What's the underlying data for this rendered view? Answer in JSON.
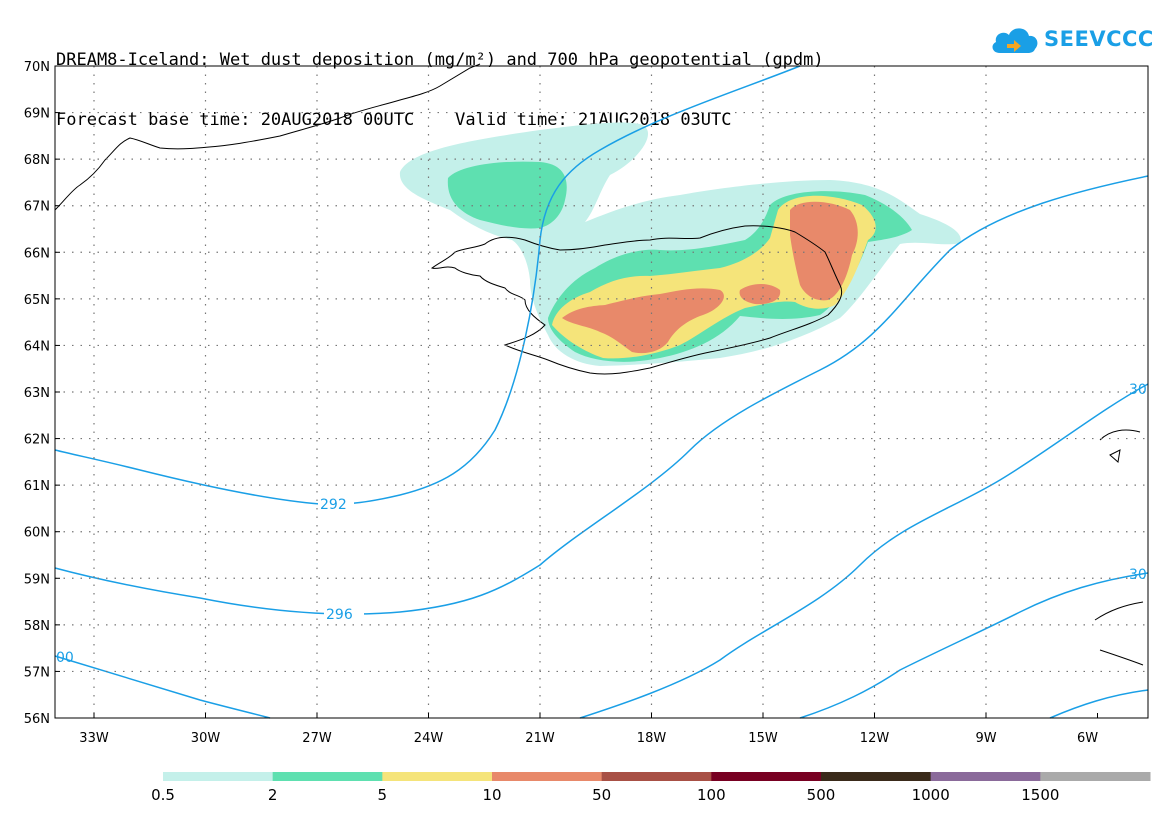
{
  "header": {
    "line1": "DREAM8-Iceland: Wet dust deposition (mg/m²) and 700 hPa geopotential (gpdm)",
    "line2": "Forecast base time: 20AUG2018 00UTC    Valid time: 21AUG2018 03UTC"
  },
  "logo": {
    "text": "SEEVCCC",
    "icon": "cloud-icon",
    "color": "#1a9fe6"
  },
  "map": {
    "lat_labels": [
      "70N",
      "69N",
      "68N",
      "67N",
      "66N",
      "65N",
      "64N",
      "63N",
      "62N",
      "61N",
      "60N",
      "59N",
      "58N",
      "57N",
      "56N"
    ],
    "lon_labels": [
      "33W",
      "30W",
      "27W",
      "24W",
      "21W",
      "18W",
      "15W",
      "12W",
      "9W",
      "6W"
    ],
    "contour_color": "#1a9fe6",
    "contour_labels": [
      "292",
      "296",
      "00",
      "30",
      "30"
    ]
  },
  "legend": {
    "colors": [
      "#c4f0ea",
      "#5ee0b0",
      "#f5e47a",
      "#e8896a",
      "#a85045",
      "#780022",
      "#3a2a1a",
      "#8a6a9a",
      "#aaaaaa"
    ],
    "labels": [
      "0.5",
      "2",
      "5",
      "10",
      "50",
      "100",
      "500",
      "1000",
      "1500"
    ]
  }
}
